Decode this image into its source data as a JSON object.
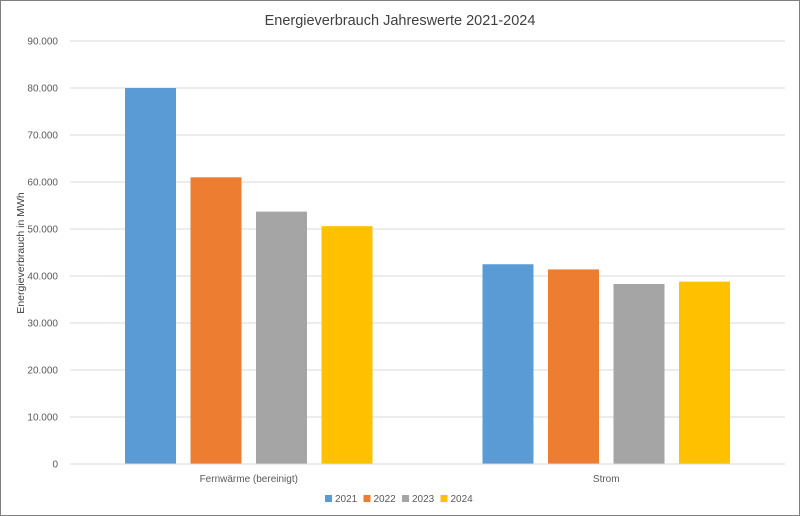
{
  "chart_data": {
    "type": "bar",
    "title": "Energieverbrauch Jahreswerte 2021-2024",
    "xlabel": "",
    "ylabel": "Energieverbrauch in MWh",
    "categories": [
      "Fernwärme (bereinigt)",
      "Strom"
    ],
    "series": [
      {
        "name": "2021",
        "color": "#5b9bd5",
        "values": [
          80000,
          42500
        ]
      },
      {
        "name": "2022",
        "color": "#ed7d31",
        "values": [
          61000,
          41400
        ]
      },
      {
        "name": "2023",
        "color": "#a5a5a5",
        "values": [
          53700,
          38300
        ]
      },
      {
        "name": "2024",
        "color": "#ffc000",
        "values": [
          50600,
          38800
        ]
      }
    ],
    "ylim": [
      0,
      90000
    ],
    "yticks": [
      "0",
      "10.000",
      "20.000",
      "30.000",
      "40.000",
      "50.000",
      "60.000",
      "70.000",
      "80.000",
      "90.000"
    ],
    "grid": true,
    "legend_position": "bottom"
  }
}
